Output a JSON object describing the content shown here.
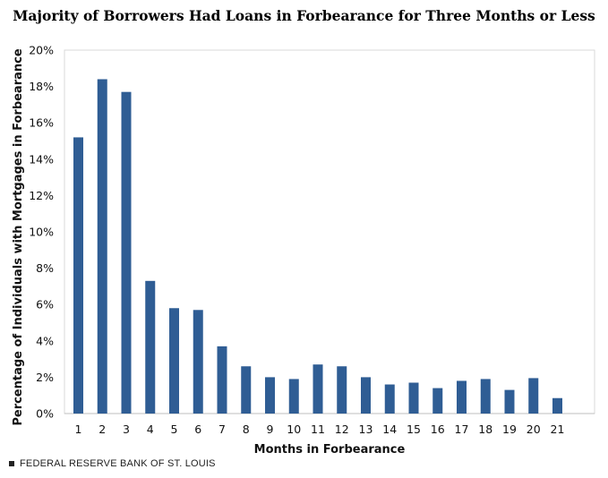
{
  "title": "Majority of Borrowers Had Loans in Forbearance for Three Months or Less",
  "source": "FEDERAL RESERVE BANK OF ST. LOUIS",
  "chart_data": {
    "type": "bar",
    "title": "Majority of Borrowers Had Loans in Forbearance for Three Months or Less",
    "xlabel": "Months in Forbearance",
    "ylabel": "Percentage of Individuals with Mortgages in Forbearance",
    "categories": [
      "1",
      "2",
      "3",
      "4",
      "5",
      "6",
      "7",
      "8",
      "9",
      "10",
      "11",
      "12",
      "13",
      "14",
      "15",
      "16",
      "17",
      "18",
      "19",
      "20",
      "21"
    ],
    "values": [
      15.2,
      18.4,
      17.7,
      7.3,
      5.8,
      5.7,
      3.7,
      2.6,
      2.0,
      1.9,
      2.7,
      2.6,
      2.0,
      1.6,
      1.7,
      1.4,
      1.8,
      1.9,
      1.3,
      1.95,
      0.85
    ],
    "ylim": [
      0,
      20
    ],
    "yticks": [
      "0%",
      "2%",
      "4%",
      "6%",
      "8%",
      "10%",
      "12%",
      "14%",
      "16%",
      "18%",
      "20%"
    ],
    "bar_color": "#2F5D94",
    "grid": false,
    "legend": "none"
  }
}
